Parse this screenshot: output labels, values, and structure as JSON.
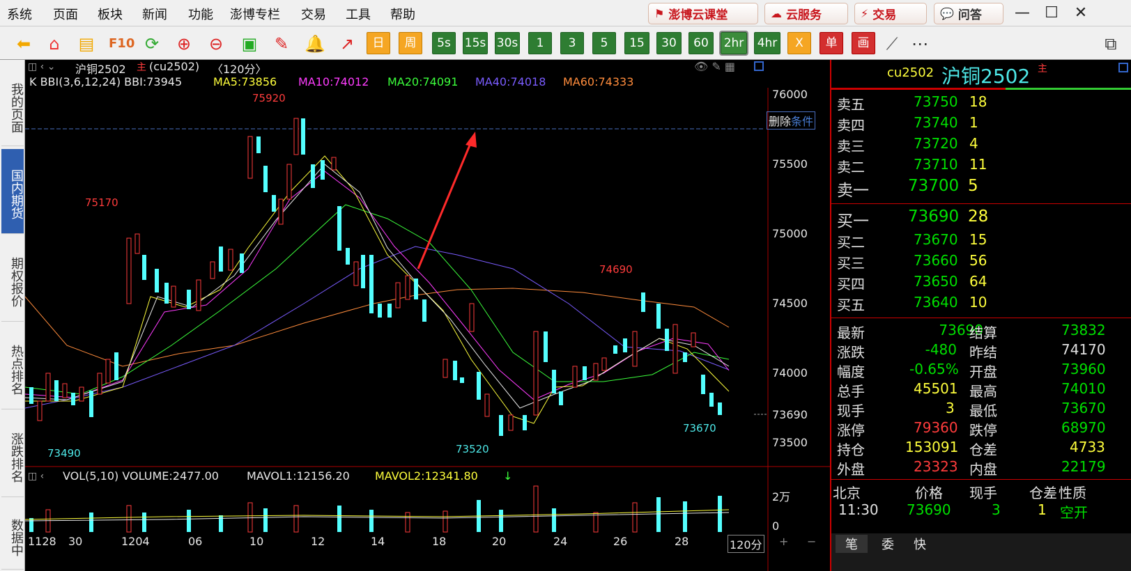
{
  "menu": {
    "items": [
      "系统",
      "页面",
      "板块",
      "新闻",
      "功能",
      "澎博专栏",
      "交易",
      "工具",
      "帮助"
    ],
    "ext_buttons": [
      "澎博云课堂",
      "云服务",
      "交易",
      "问答"
    ]
  },
  "toolbar": {
    "periods": [
      "日",
      "周",
      "5s",
      "15s",
      "30s",
      "1",
      "3",
      "5",
      "15",
      "30",
      "60",
      "2hr",
      "4hr"
    ],
    "selected_period": "2hr",
    "extra": [
      "X",
      "单",
      "画"
    ]
  },
  "sidebar": {
    "tabs": [
      "我的页面",
      "国内期货",
      "期权报价",
      "热点排名",
      "涨跌排名",
      "数据中"
    ],
    "active": "国内期货"
  },
  "chart_header": {
    "title": "沪铜2502",
    "main_badge": "主",
    "code": "(cu2502)",
    "period": "〈120分〉"
  },
  "indicators": {
    "bbi": "K BBI(3,6,12,24) BBI:73945",
    "ma5": "MA5:73856",
    "ma10": "MA10:74012",
    "ma20": "MA20:74091",
    "ma40": "MA40:74018",
    "ma60": "MA60:74333",
    "arrow": "↓"
  },
  "annotations": {
    "high": "75920",
    "h2": "75170",
    "h3": "74690",
    "low1": "73490",
    "low2": "73520",
    "low3": "73670"
  },
  "price_axis": [
    "76000",
    "75500",
    "75000",
    "74500",
    "74000",
    "73690",
    "73500"
  ],
  "condition": {
    "delete": "删除",
    "cond": "条件"
  },
  "volume": {
    "header": "VOL(5,10) VOLUME:2477.00",
    "mavol1": "MAVOL1:12156.20",
    "mavol2": "MAVOL2:12341.80",
    "arrow": "↓",
    "axis": [
      "2万",
      "0"
    ]
  },
  "date_axis": [
    "1128",
    "30",
    "1204",
    "06",
    "10",
    "12",
    "14",
    "18",
    "20",
    "24",
    "26",
    "28"
  ],
  "period_label": "120分",
  "quote": {
    "code": "cu2502",
    "name": "沪铜2502",
    "badge": "主",
    "asks": [
      {
        "label": "卖五",
        "price": "73750",
        "vol": "18"
      },
      {
        "label": "卖四",
        "price": "73740",
        "vol": "1"
      },
      {
        "label": "卖三",
        "price": "73720",
        "vol": "4"
      },
      {
        "label": "卖二",
        "price": "73710",
        "vol": "11"
      },
      {
        "label": "卖一",
        "price": "73700",
        "vol": "5"
      }
    ],
    "bids": [
      {
        "label": "买一",
        "price": "73690",
        "vol": "28"
      },
      {
        "label": "买二",
        "price": "73670",
        "vol": "15"
      },
      {
        "label": "买三",
        "price": "73660",
        "vol": "56"
      },
      {
        "label": "买四",
        "price": "73650",
        "vol": "64"
      },
      {
        "label": "买五",
        "price": "73640",
        "vol": "10"
      }
    ],
    "stats": [
      [
        {
          "k": "最新",
          "v": "73690",
          "c": "g"
        },
        {
          "k": "结算",
          "v": "73832",
          "c": "g"
        }
      ],
      [
        {
          "k": "涨跌",
          "v": "-480",
          "c": "g"
        },
        {
          "k": "昨结",
          "v": "74170",
          "c": "w"
        }
      ],
      [
        {
          "k": "幅度",
          "v": "-0.65%",
          "c": "g"
        },
        {
          "k": "开盘",
          "v": "73960",
          "c": "g"
        }
      ],
      [
        {
          "k": "总手",
          "v": "45501",
          "c": "y"
        },
        {
          "k": "最高",
          "v": "74010",
          "c": "g"
        }
      ],
      [
        {
          "k": "现手",
          "v": "3",
          "c": "y"
        },
        {
          "k": "最低",
          "v": "73670",
          "c": "g"
        }
      ],
      [
        {
          "k": "涨停",
          "v": "79360",
          "c": "r"
        },
        {
          "k": "跌停",
          "v": "68970",
          "c": "g"
        }
      ],
      [
        {
          "k": "持仓",
          "v": "153091",
          "c": "y"
        },
        {
          "k": "仓差",
          "v": "4733",
          "c": "y"
        }
      ],
      [
        {
          "k": "外盘",
          "v": "23323",
          "c": "r"
        },
        {
          "k": "内盘",
          "v": "22179",
          "c": "g"
        }
      ]
    ],
    "trade_header": [
      "北京",
      "价格",
      "现手",
      "仓差",
      "性质"
    ],
    "trade_row": [
      "11:30",
      "73690",
      "3",
      "1",
      "空开"
    ],
    "bottom_tabs": [
      "笔",
      "委",
      "快"
    ]
  }
}
